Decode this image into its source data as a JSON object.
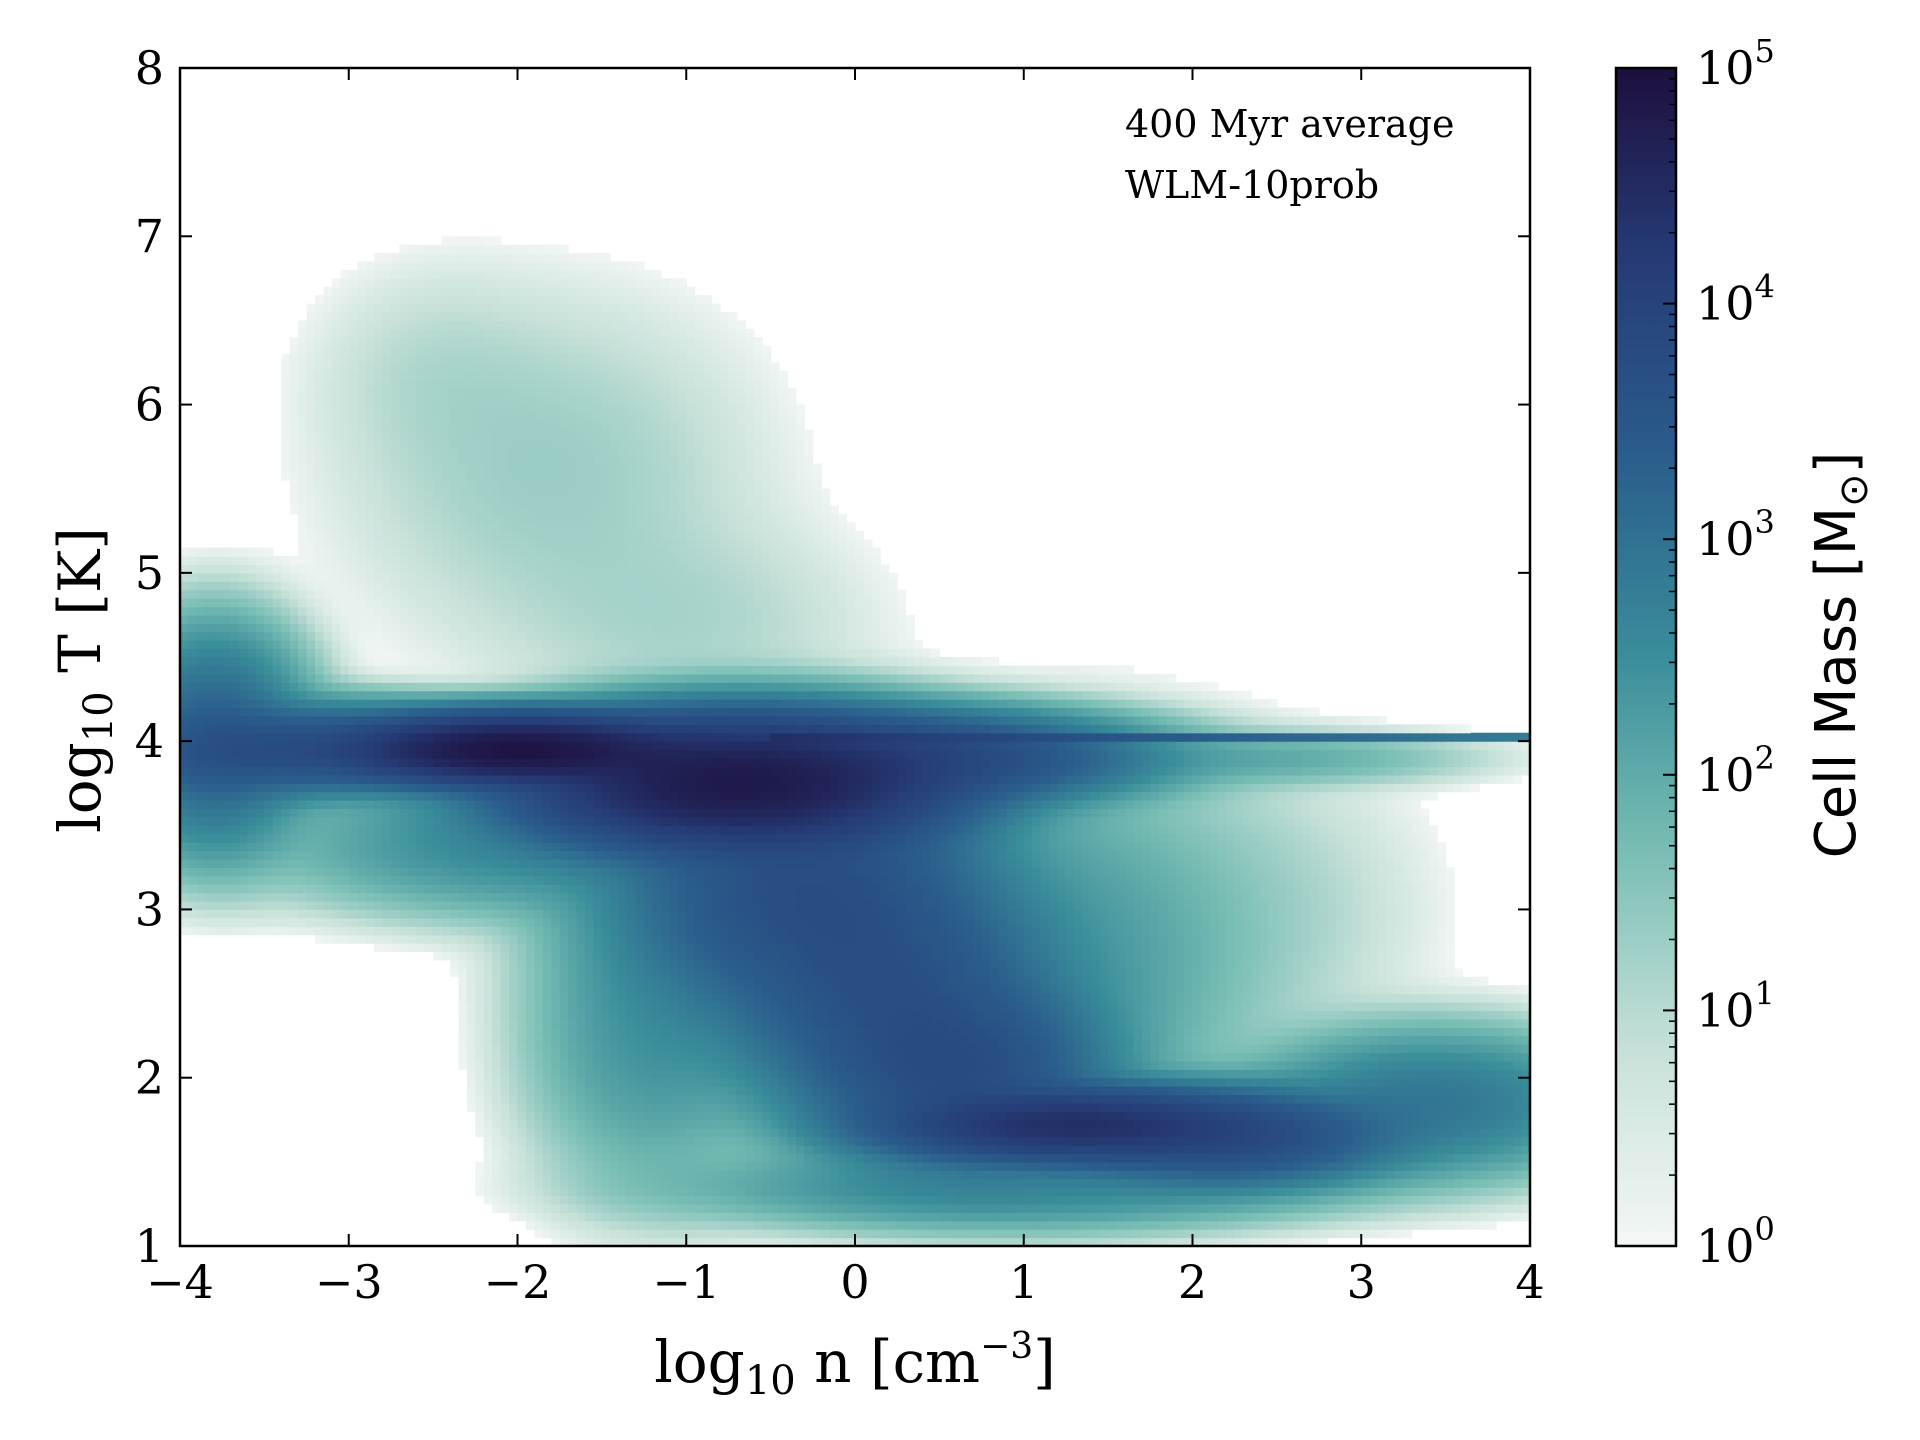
{
  "chart_data": {
    "type": "heatmap",
    "annotations": [
      "400 Myr average",
      "WLM-10prob"
    ],
    "xlabel": {
      "base": "log",
      "sub": "10",
      "main": " n [cm",
      "sup": "−3",
      "end": "]"
    },
    "ylabel": {
      "base": "log",
      "sub": "10",
      "main": " T [K]"
    },
    "xlim": [
      -4,
      4
    ],
    "ylim": [
      1,
      8
    ],
    "xticks": [
      -4,
      -3,
      -2,
      -1,
      0,
      1,
      2,
      3,
      4
    ],
    "xtick_labels": [
      "−4",
      "−3",
      "−2",
      "−1",
      "0",
      "1",
      "2",
      "3",
      "4"
    ],
    "yticks": [
      1,
      2,
      3,
      4,
      5,
      6,
      7,
      8
    ],
    "ytick_labels": [
      "1",
      "2",
      "3",
      "4",
      "5",
      "6",
      "7",
      "8"
    ],
    "colorbar": {
      "label": {
        "main": "Cell Mass [M",
        "sub": "⊙",
        "end": "]"
      },
      "scale": "log",
      "range": [
        1,
        100000
      ],
      "ticks": [
        1,
        10,
        100,
        1000,
        10000,
        100000
      ],
      "tick_labels": [
        {
          "base": "10",
          "exp": "0"
        },
        {
          "base": "10",
          "exp": "1"
        },
        {
          "base": "10",
          "exp": "2"
        },
        {
          "base": "10",
          "exp": "3"
        },
        {
          "base": "10",
          "exp": "4"
        },
        {
          "base": "10",
          "exp": "5"
        }
      ],
      "colors": [
        "#f4f7f6",
        "#c7e1d9",
        "#79beb4",
        "#3a8e9a",
        "#2a5d8c",
        "#263d78",
        "#1d0f3e"
      ]
    },
    "density_blobs": [
      {
        "x": -2.0,
        "y": 3.95,
        "sx": 0.45,
        "sy": 0.09,
        "log_mass": 4.9
      },
      {
        "x": -0.7,
        "y": 3.75,
        "sx": 0.55,
        "sy": 0.17,
        "log_mass": 4.8
      },
      {
        "x": -3.3,
        "y": 3.95,
        "sx": 0.5,
        "sy": 0.12,
        "log_mass": 3.7
      },
      {
        "x": -3.8,
        "y": 4.0,
        "sx": 0.25,
        "sy": 0.3,
        "log_mass": 3.3
      },
      {
        "x": 0.3,
        "y": 3.9,
        "sx": 0.6,
        "sy": 0.12,
        "log_mass": 3.9
      },
      {
        "x": -0.3,
        "y": 3.1,
        "sx": 0.5,
        "sy": 0.35,
        "log_mass": 3.7
      },
      {
        "x": 0.2,
        "y": 2.5,
        "sx": 0.45,
        "sy": 0.35,
        "log_mass": 3.6
      },
      {
        "x": 0.6,
        "y": 2.05,
        "sx": 0.4,
        "sy": 0.25,
        "log_mass": 3.7
      },
      {
        "x": 1.3,
        "y": 1.72,
        "sx": 0.5,
        "sy": 0.1,
        "log_mass": 4.4
      },
      {
        "x": 2.2,
        "y": 1.65,
        "sx": 0.45,
        "sy": 0.13,
        "log_mass": 3.8
      },
      {
        "x": 3.4,
        "y": 1.85,
        "sx": 0.5,
        "sy": 0.2,
        "log_mass": 2.9
      },
      {
        "x": -1.9,
        "y": 3.4,
        "sx": 0.7,
        "sy": 0.2,
        "log_mass": 2.6
      },
      {
        "x": -1.2,
        "y": 2.3,
        "sx": 0.35,
        "sy": 0.45,
        "log_mass": 2.4
      },
      {
        "x": 0.9,
        "y": 1.35,
        "sx": 0.9,
        "sy": 0.12,
        "log_mass": 2.6
      },
      {
        "x": 1.2,
        "y": 2.7,
        "sx": 0.55,
        "sy": 0.55,
        "log_mass": 2.3
      },
      {
        "x": 2.3,
        "y": 3.0,
        "sx": 0.55,
        "sy": 0.5,
        "log_mass": 1.2
      },
      {
        "x": 2.4,
        "y": 3.9,
        "sx": 0.6,
        "sy": 0.08,
        "log_mass": 2.0
      },
      {
        "x": -1.8,
        "y": 5.6,
        "sx": 0.65,
        "sy": 0.55,
        "log_mass": 1.3
      },
      {
        "x": -1.0,
        "y": 4.7,
        "sx": 0.6,
        "sy": 0.35,
        "log_mass": 1.1
      },
      {
        "x": -2.5,
        "y": 6.2,
        "sx": 0.4,
        "sy": 0.35,
        "log_mass": 0.9
      }
    ],
    "line_feature": {
      "x_start": -0.5,
      "x_end": 4.0,
      "y": 4.02
    }
  }
}
